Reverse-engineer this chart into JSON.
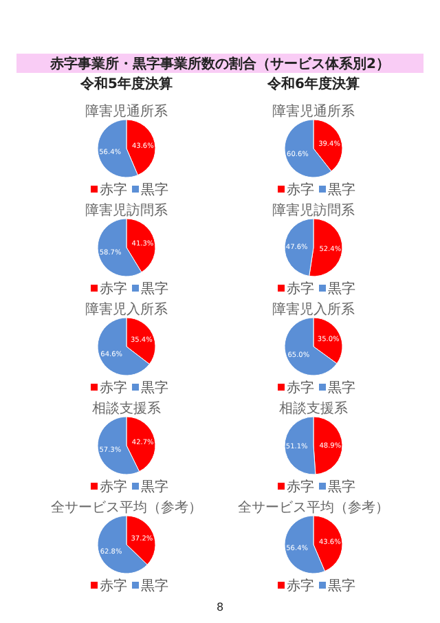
{
  "chart_data": [
    {
      "type": "pie",
      "title": "障害児通所系",
      "subtitle": "令和5年度決算",
      "annotations": [
        "赤字事業所・黒字事業所数の割合（サービス体系別2）",
        "8"
      ],
      "categories": [
        "赤字",
        "黒字"
      ],
      "values": [
        43.6,
        56.4
      ],
      "value_labels": [
        "43.6%",
        "56.4%"
      ],
      "colors": [
        "#ff0000",
        "#5b8fd6"
      ],
      "legend": "bottom"
    },
    {
      "type": "pie",
      "title": "障害児通所系",
      "subtitle": "令和6年度決算",
      "categories": [
        "赤字",
        "黒字"
      ],
      "values": [
        39.4,
        60.6
      ],
      "value_labels": [
        "39.4%",
        "60.6%"
      ],
      "colors": [
        "#ff0000",
        "#5b8fd6"
      ],
      "legend": "bottom"
    },
    {
      "type": "pie",
      "title": "障害児訪問系",
      "categories": [
        "赤字",
        "黒字"
      ],
      "values": [
        41.3,
        58.7
      ],
      "value_labels": [
        "41.3%",
        "58.7%"
      ],
      "colors": [
        "#ff0000",
        "#5b8fd6"
      ],
      "legend": "bottom"
    },
    {
      "type": "pie",
      "title": "障害児訪問系",
      "categories": [
        "赤字",
        "黒字"
      ],
      "values": [
        52.4,
        47.6
      ],
      "value_labels": [
        "52.4%",
        "47.6%"
      ],
      "colors": [
        "#ff0000",
        "#5b8fd6"
      ],
      "legend": "bottom"
    },
    {
      "type": "pie",
      "title": "障害児入所系",
      "categories": [
        "赤字",
        "黒字"
      ],
      "values": [
        35.4,
        64.6
      ],
      "value_labels": [
        "35.4%",
        "64.6%"
      ],
      "colors": [
        "#ff0000",
        "#5b8fd6"
      ],
      "legend": "bottom"
    },
    {
      "type": "pie",
      "title": "障害児入所系",
      "categories": [
        "赤字",
        "黒字"
      ],
      "values": [
        35.0,
        65.0
      ],
      "value_labels": [
        "35.0%",
        "65.0%"
      ],
      "colors": [
        "#ff0000",
        "#5b8fd6"
      ],
      "legend": "bottom"
    },
    {
      "type": "pie",
      "title": "相談支援系",
      "categories": [
        "赤字",
        "黒字"
      ],
      "values": [
        42.7,
        57.3
      ],
      "value_labels": [
        "42.7%",
        "57.3%"
      ],
      "colors": [
        "#ff0000",
        "#5b8fd6"
      ],
      "legend": "bottom"
    },
    {
      "type": "pie",
      "title": "相談支援系",
      "categories": [
        "赤字",
        "黒字"
      ],
      "values": [
        48.9,
        51.1
      ],
      "value_labels": [
        "48.9%",
        "51.1%"
      ],
      "colors": [
        "#ff0000",
        "#5b8fd6"
      ],
      "legend": "bottom"
    },
    {
      "type": "pie",
      "title": "全サービス平均（参考）",
      "categories": [
        "赤字",
        "黒字"
      ],
      "values": [
        37.2,
        62.8
      ],
      "value_labels": [
        "37.2%",
        "62.8%"
      ],
      "colors": [
        "#ff0000",
        "#5b8fd6"
      ],
      "legend": "bottom"
    },
    {
      "type": "pie",
      "title": "全サービス平均（参考）",
      "categories": [
        "赤字",
        "黒字"
      ],
      "values": [
        43.6,
        56.4
      ],
      "value_labels": [
        "43.6%",
        "56.4%"
      ],
      "colors": [
        "#ff0000",
        "#5b8fd6"
      ],
      "legend": "bottom"
    }
  ]
}
